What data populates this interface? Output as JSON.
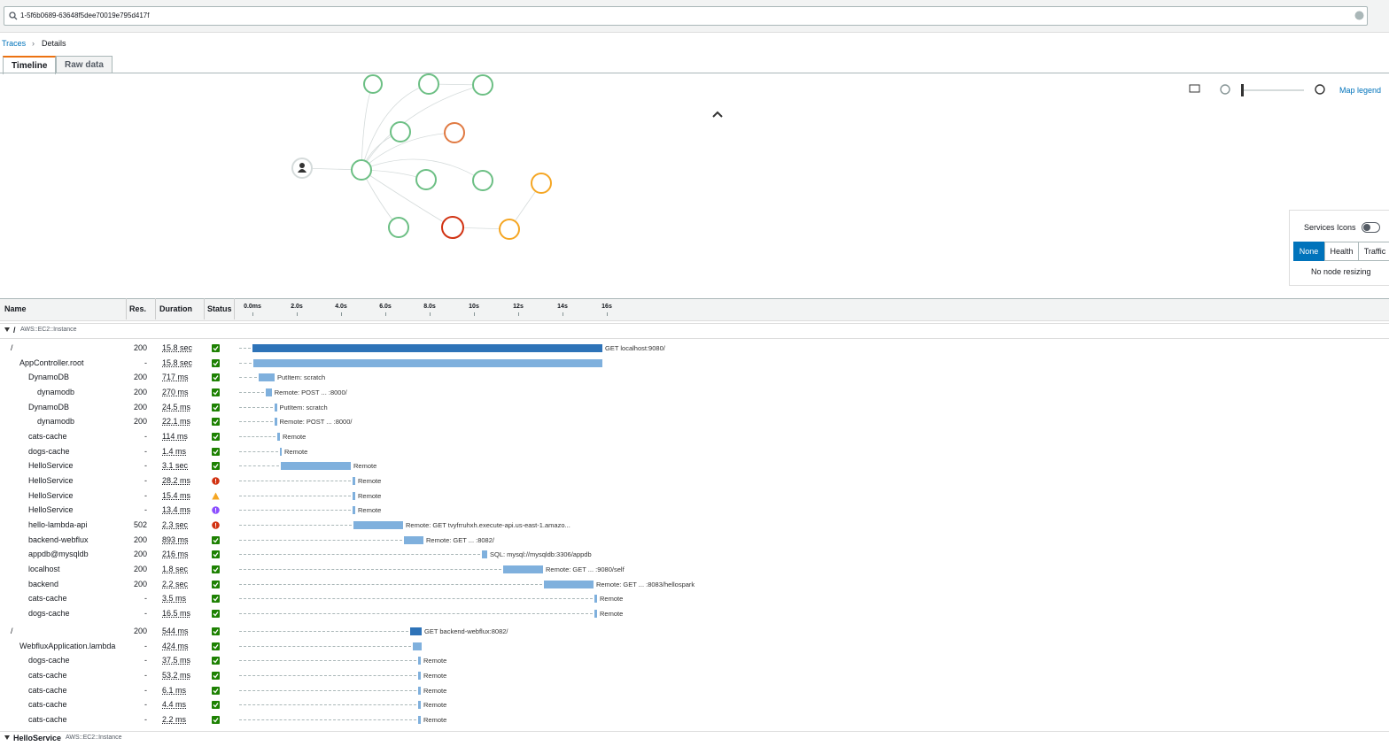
{
  "search": {
    "query": "1-5f6b0689-63648f5dee70019e795d417f"
  },
  "breadcrumb": {
    "parent": "Traces",
    "current": "Details"
  },
  "tabs": [
    "Timeline",
    "Raw data"
  ],
  "map": {
    "legend_link": "Map legend",
    "services_icons": "Services Icons",
    "modes": [
      "None",
      "Health",
      "Traffic"
    ],
    "resizing": "No node resizing"
  },
  "table": {
    "headers": [
      "Name",
      "Res.",
      "Duration",
      "Status"
    ],
    "xlim": [
      0,
      16
    ],
    "xticks": [
      {
        "value": 0,
        "label": "0.0ms"
      },
      {
        "value": 2,
        "label": "2.0s"
      },
      {
        "value": 4,
        "label": "4.0s"
      },
      {
        "value": 6,
        "label": "6.0s"
      },
      {
        "value": 8,
        "label": "8.0s"
      },
      {
        "value": 10,
        "label": "10s"
      },
      {
        "value": 12,
        "label": "12s"
      },
      {
        "value": 14,
        "label": "14s"
      },
      {
        "value": 16,
        "label": "16s"
      }
    ],
    "groups": [
      {
        "name": "/",
        "type": "AWS::EC2::Instance",
        "rows": [
          {
            "name": "/",
            "depth": 0,
            "res": "200",
            "duration": "15.8 sec",
            "status": "ok",
            "start": 0,
            "end": 15.8,
            "label": "GET localhost:9080/",
            "root": true
          },
          {
            "name": "AppController.root",
            "depth": 1,
            "res": "-",
            "duration": "15.8 sec",
            "status": "ok",
            "start": 0.05,
            "end": 15.8
          },
          {
            "name": "DynamoDB",
            "depth": 2,
            "res": "200",
            "duration": "717 ms",
            "status": "ok",
            "start": 0.28,
            "end": 1.0,
            "label": "PutItem: scratch"
          },
          {
            "name": "dynamodb",
            "depth": 3,
            "res": "200",
            "duration": "270 ms",
            "status": "ok",
            "start": 0.6,
            "end": 0.87,
            "label": "Remote: POST ... :8000/"
          },
          {
            "name": "DynamoDB",
            "depth": 2,
            "res": "200",
            "duration": "24.5 ms",
            "status": "ok",
            "start": 1.0,
            "end": 1.1,
            "label": "PutItem: scratch"
          },
          {
            "name": "dynamodb",
            "depth": 3,
            "res": "200",
            "duration": "22.1 ms",
            "status": "ok",
            "start": 1.0,
            "end": 1.1,
            "label": "Remote: POST ... :8000/"
          },
          {
            "name": "cats-cache",
            "depth": 2,
            "res": "-",
            "duration": "114 ms",
            "status": "ok",
            "start": 1.12,
            "end": 1.24,
            "label": "Remote"
          },
          {
            "name": "dogs-cache",
            "depth": 2,
            "res": "-",
            "duration": "1.4 ms",
            "status": "ok",
            "start": 1.24,
            "end": 1.32,
            "label": "Remote"
          },
          {
            "name": "HelloService",
            "depth": 2,
            "res": "-",
            "duration": "3.1 sec",
            "status": "ok",
            "start": 1.28,
            "end": 4.44,
            "label": "Remote"
          },
          {
            "name": "HelloService",
            "depth": 2,
            "res": "-",
            "duration": "28.2 ms",
            "status": "error",
            "start": 4.52,
            "end": 4.64,
            "label": "Remote"
          },
          {
            "name": "HelloService",
            "depth": 2,
            "res": "-",
            "duration": "15.4 ms",
            "status": "warning",
            "start": 4.52,
            "end": 4.64,
            "label": "Remote"
          },
          {
            "name": "HelloService",
            "depth": 2,
            "res": "-",
            "duration": "13.4 ms",
            "status": "fault",
            "start": 4.52,
            "end": 4.64,
            "label": "Remote"
          },
          {
            "name": "hello-lambda-api",
            "depth": 2,
            "res": "502",
            "duration": "2.3 sec",
            "status": "error",
            "start": 4.56,
            "end": 6.8,
            "label": "Remote: GET tvyfrruhxh.execute-api.us-east-1.amazo..."
          },
          {
            "name": "backend-webflux",
            "depth": 2,
            "res": "200",
            "duration": "893 ms",
            "status": "ok",
            "start": 6.84,
            "end": 7.72,
            "label": "Remote: GET ... :8082/"
          },
          {
            "name": "appdb@mysqldb",
            "depth": 2,
            "res": "200",
            "duration": "216 ms",
            "status": "ok",
            "start": 10.36,
            "end": 10.6,
            "label": "SQL: mysql://mysqldb:3306/appdb"
          },
          {
            "name": "localhost",
            "depth": 2,
            "res": "200",
            "duration": "1.8 sec",
            "status": "ok",
            "start": 11.32,
            "end": 13.12,
            "label": "Remote: GET ... :9080/self"
          },
          {
            "name": "backend",
            "depth": 2,
            "res": "200",
            "duration": "2.2 sec",
            "status": "ok",
            "start": 13.16,
            "end": 15.4,
            "label": "Remote: GET ... :8083/hellospark"
          },
          {
            "name": "cats-cache",
            "depth": 2,
            "res": "-",
            "duration": "3.5 ms",
            "status": "ok",
            "start": 15.44,
            "end": 15.56,
            "label": "Remote"
          },
          {
            "name": "dogs-cache",
            "depth": 2,
            "res": "-",
            "duration": "16.5 ms",
            "status": "ok",
            "start": 15.44,
            "end": 15.56,
            "label": "Remote"
          }
        ]
      },
      {
        "rows": [
          {
            "name": "/",
            "depth": 0,
            "res": "200",
            "duration": "544 ms",
            "status": "ok",
            "start": 7.12,
            "end": 7.64,
            "label": "GET backend-webflux:8082/",
            "root": true
          },
          {
            "name": "WebfluxApplication.lambda",
            "depth": 1,
            "res": "-",
            "duration": "424 ms",
            "status": "ok",
            "start": 7.24,
            "end": 7.64
          },
          {
            "name": "dogs-cache",
            "depth": 2,
            "res": "-",
            "duration": "37.5 ms",
            "status": "ok",
            "start": 7.48,
            "end": 7.6,
            "label": "Remote"
          },
          {
            "name": "cats-cache",
            "depth": 2,
            "res": "-",
            "duration": "53.2 ms",
            "status": "ok",
            "start": 7.48,
            "end": 7.6,
            "label": "Remote"
          },
          {
            "name": "cats-cache",
            "depth": 2,
            "res": "-",
            "duration": "6.1 ms",
            "status": "ok",
            "start": 7.48,
            "end": 7.6,
            "label": "Remote"
          },
          {
            "name": "cats-cache",
            "depth": 2,
            "res": "-",
            "duration": "4.4 ms",
            "status": "ok",
            "start": 7.48,
            "end": 7.6,
            "label": "Remote"
          },
          {
            "name": "cats-cache",
            "depth": 2,
            "res": "-",
            "duration": "2.2 ms",
            "status": "ok",
            "start": 7.48,
            "end": 7.6,
            "label": "Remote"
          }
        ]
      },
      {
        "name": "HelloService",
        "type": "AWS::EC2::Instance",
        "rows": []
      }
    ]
  }
}
